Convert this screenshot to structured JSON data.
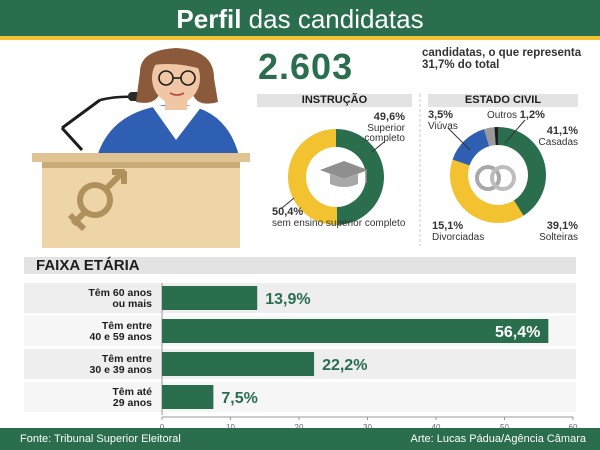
{
  "header": {
    "title_bold": "Perfil",
    "title_rest": "das candidatas"
  },
  "summary": {
    "total": "2.603",
    "description": "candidatas, o que representa 31,7% do total"
  },
  "instrucao": {
    "title": "INSTRUÇÃO",
    "slices": [
      {
        "value": "49,6%",
        "label": "Superior completo",
        "pct": 49.6,
        "color": "#2a6e4e"
      },
      {
        "value": "50,4%",
        "label": "sem ensino superior completo",
        "pct": 50.4,
        "color": "#f2c230"
      }
    ]
  },
  "estado_civil": {
    "title": "ESTADO CIVIL",
    "slices": [
      {
        "value": "41,1%",
        "label": "Casadas",
        "pct": 41.1,
        "color": "#2a6e4e"
      },
      {
        "value": "39,1%",
        "label": "Solteiras",
        "pct": 39.1,
        "color": "#f2c230"
      },
      {
        "value": "15,1%",
        "label": "Divorciadas",
        "pct": 15.1,
        "color": "#2f5fb3"
      },
      {
        "value": "3,5%",
        "label": "Viúvas",
        "pct": 3.5,
        "color": "#9a9a9a"
      },
      {
        "value": "1,2%",
        "label": "Outros",
        "pct": 1.2,
        "color": "#1d1d1b"
      }
    ]
  },
  "chart_data": {
    "type": "bar",
    "orientation": "horizontal",
    "title": "FAIXA ETÁRIA",
    "categories": [
      "Têm 60 anos ou mais",
      "Têm entre 40 e 59 anos",
      "Têm entre 30 e 39 anos",
      "Têm até 29 anos"
    ],
    "category_lines": [
      [
        "Têm 60 anos",
        "ou mais"
      ],
      [
        "Têm entre",
        "40 e 59 anos"
      ],
      [
        "Têm entre",
        "30 e 39 anos"
      ],
      [
        "Têm até",
        "29 anos"
      ]
    ],
    "values": [
      13.9,
      56.4,
      22.2,
      7.5
    ],
    "value_labels": [
      "13,9%",
      "56,4%",
      "22,2%",
      "7,5%"
    ],
    "xlim": [
      0,
      60
    ],
    "xticks": [
      0,
      10,
      20,
      30,
      40,
      50,
      60
    ],
    "bar_color": "#2a6e4e",
    "label_color": "#2a6e4e"
  },
  "footer": {
    "source": "Fonte: Tribunal Superior Eleitoral",
    "credit": "Arte: Lucas Pádua/Agência Câmara"
  }
}
